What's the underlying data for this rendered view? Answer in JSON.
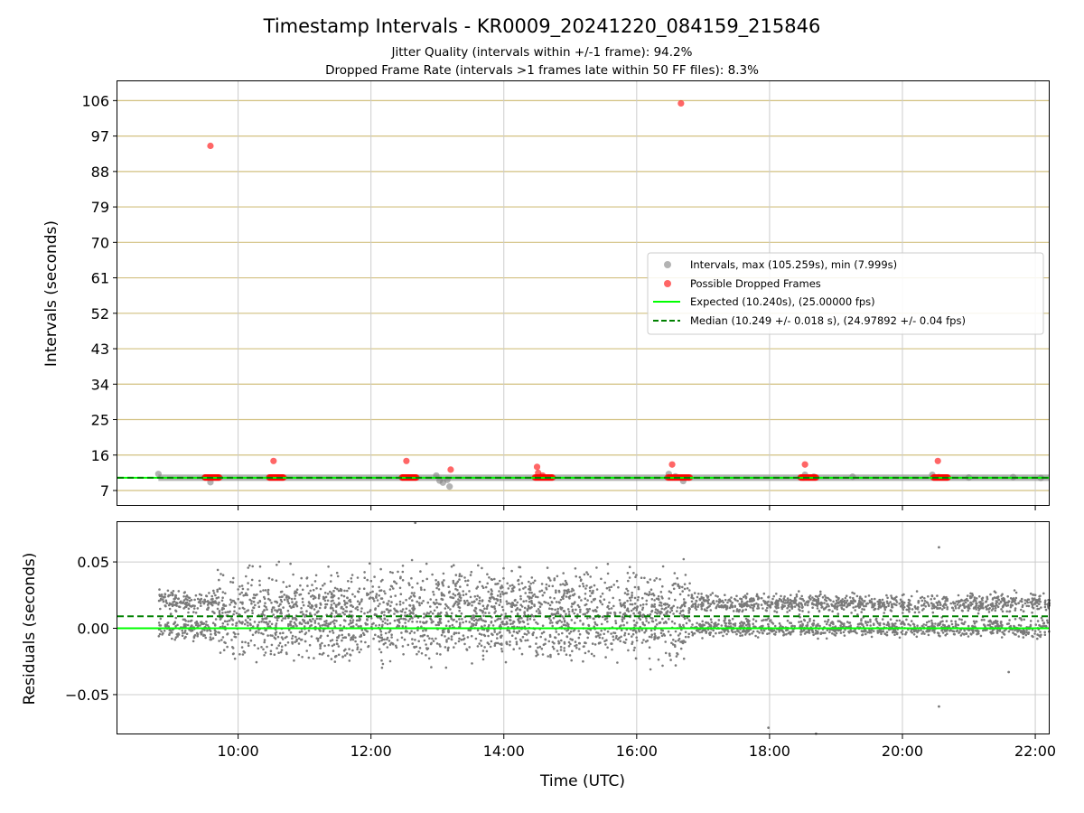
{
  "chart_data": [
    {
      "type": "scatter",
      "title": "Timestamp Intervals - KR0009_20241220_084159_215846",
      "subtitle_lines": [
        "Jitter Quality (intervals within +/-1 frame): 94.2%",
        "Dropped Frame Rate (intervals >1 frames late within 50 FF files): 8.3%"
      ],
      "xlabel": "",
      "ylabel": "Intervals (seconds)",
      "xlim": [
        "08:11",
        "22:13"
      ],
      "ylim": [
        3.1,
        110.9
      ],
      "yticks": [
        7,
        16,
        25,
        34,
        43,
        52,
        61,
        70,
        79,
        88,
        97,
        106
      ],
      "xticks": [
        "10:00",
        "12:00",
        "14:00",
        "16:00",
        "18:00",
        "20:00",
        "22:00"
      ],
      "grid": true,
      "legend_position": "center-right",
      "legend": [
        "Intervals, max (105.259s), min (7.999s)",
        "Possible Dropped Frames",
        "Expected (10.240s), (25.00000 fps)",
        "Median (10.249 +/- 0.018 s), (24.97892 +/- 0.04 fps)"
      ],
      "expected_interval": 10.24,
      "median_interval": 10.249,
      "max_interval": 105.259,
      "min_interval": 7.999,
      "series": [
        {
          "name": "Intervals, max (105.259s), min (7.999s)",
          "style": "scatter-gray",
          "x": [
            "08:48",
            "09:30",
            "09:35",
            "12:59",
            "13:02",
            "13:05",
            "13:09",
            "13:11",
            "16:29",
            "16:35",
            "16:42",
            "18:32",
            "18:40",
            "19:15",
            "20:27",
            "20:33",
            "21:00",
            "21:40",
            "22:05"
          ],
          "y": [
            11.2,
            10.3,
            9.1,
            10.8,
            9.5,
            9.0,
            9.7,
            8.0,
            11.2,
            10.6,
            9.4,
            11.0,
            10.5,
            10.5,
            11.0,
            10.4,
            10.3,
            10.4,
            10.2
          ]
        },
        {
          "name": "Possible Dropped Frames",
          "style": "scatter-red",
          "x": [
            "09:35",
            "10:32",
            "12:32",
            "13:12",
            "14:30",
            "14:31",
            "14:35",
            "16:32",
            "16:40",
            "18:32",
            "20:32"
          ],
          "y": [
            94.5,
            14.5,
            14.5,
            12.3,
            13.0,
            11.5,
            10.8,
            13.6,
            105.3,
            13.6,
            14.5
          ]
        },
        {
          "name": "Possible Dropped Frames (clusters)",
          "style": "scatter-red-cluster",
          "x_ranges": [
            [
              "09:30",
              "09:43"
            ],
            [
              "10:28",
              "10:41"
            ],
            [
              "12:28",
              "12:41"
            ],
            [
              "14:28",
              "14:44"
            ],
            [
              "16:28",
              "16:48"
            ],
            [
              "18:28",
              "18:42"
            ],
            [
              "20:28",
              "20:41"
            ]
          ],
          "y": 10.3
        }
      ]
    },
    {
      "type": "scatter",
      "title": "",
      "xlabel": "Time (UTC)",
      "ylabel": "Residuals (seconds)",
      "xlim": [
        "08:11",
        "22:13"
      ],
      "ylim": [
        -0.08,
        0.08
      ],
      "yticks": [
        -0.05,
        0.0,
        0.05
      ],
      "ytick_labels": [
        "−0.05",
        "0.00",
        "0.05"
      ],
      "xticks": [
        "10:00",
        "12:00",
        "14:00",
        "16:00",
        "18:00",
        "20:00",
        "22:00"
      ],
      "grid": true,
      "expected_residual": 0.0,
      "median_residual": 0.009,
      "residual_bands": [
        {
          "x_range": [
            "08:48",
            "09:40"
          ],
          "levels": [
            0.02,
            0.0
          ],
          "spread": 0.008
        },
        {
          "x_range": [
            "09:40",
            "16:48"
          ],
          "levels": [
            0.02,
            0.0
          ],
          "spread": 0.022
        },
        {
          "x_range": [
            "16:48",
            "22:13"
          ],
          "levels": [
            0.019,
            0.0
          ],
          "spread": 0.006
        }
      ],
      "outliers": [
        {
          "x": "12:40",
          "y": 0.081
        },
        {
          "x": "17:59",
          "y": -0.075
        },
        {
          "x": "18:42",
          "y": -0.081
        },
        {
          "x": "20:33",
          "y": 0.061
        },
        {
          "x": "20:33",
          "y": -0.059
        },
        {
          "x": "21:36",
          "y": -0.033
        }
      ]
    }
  ]
}
